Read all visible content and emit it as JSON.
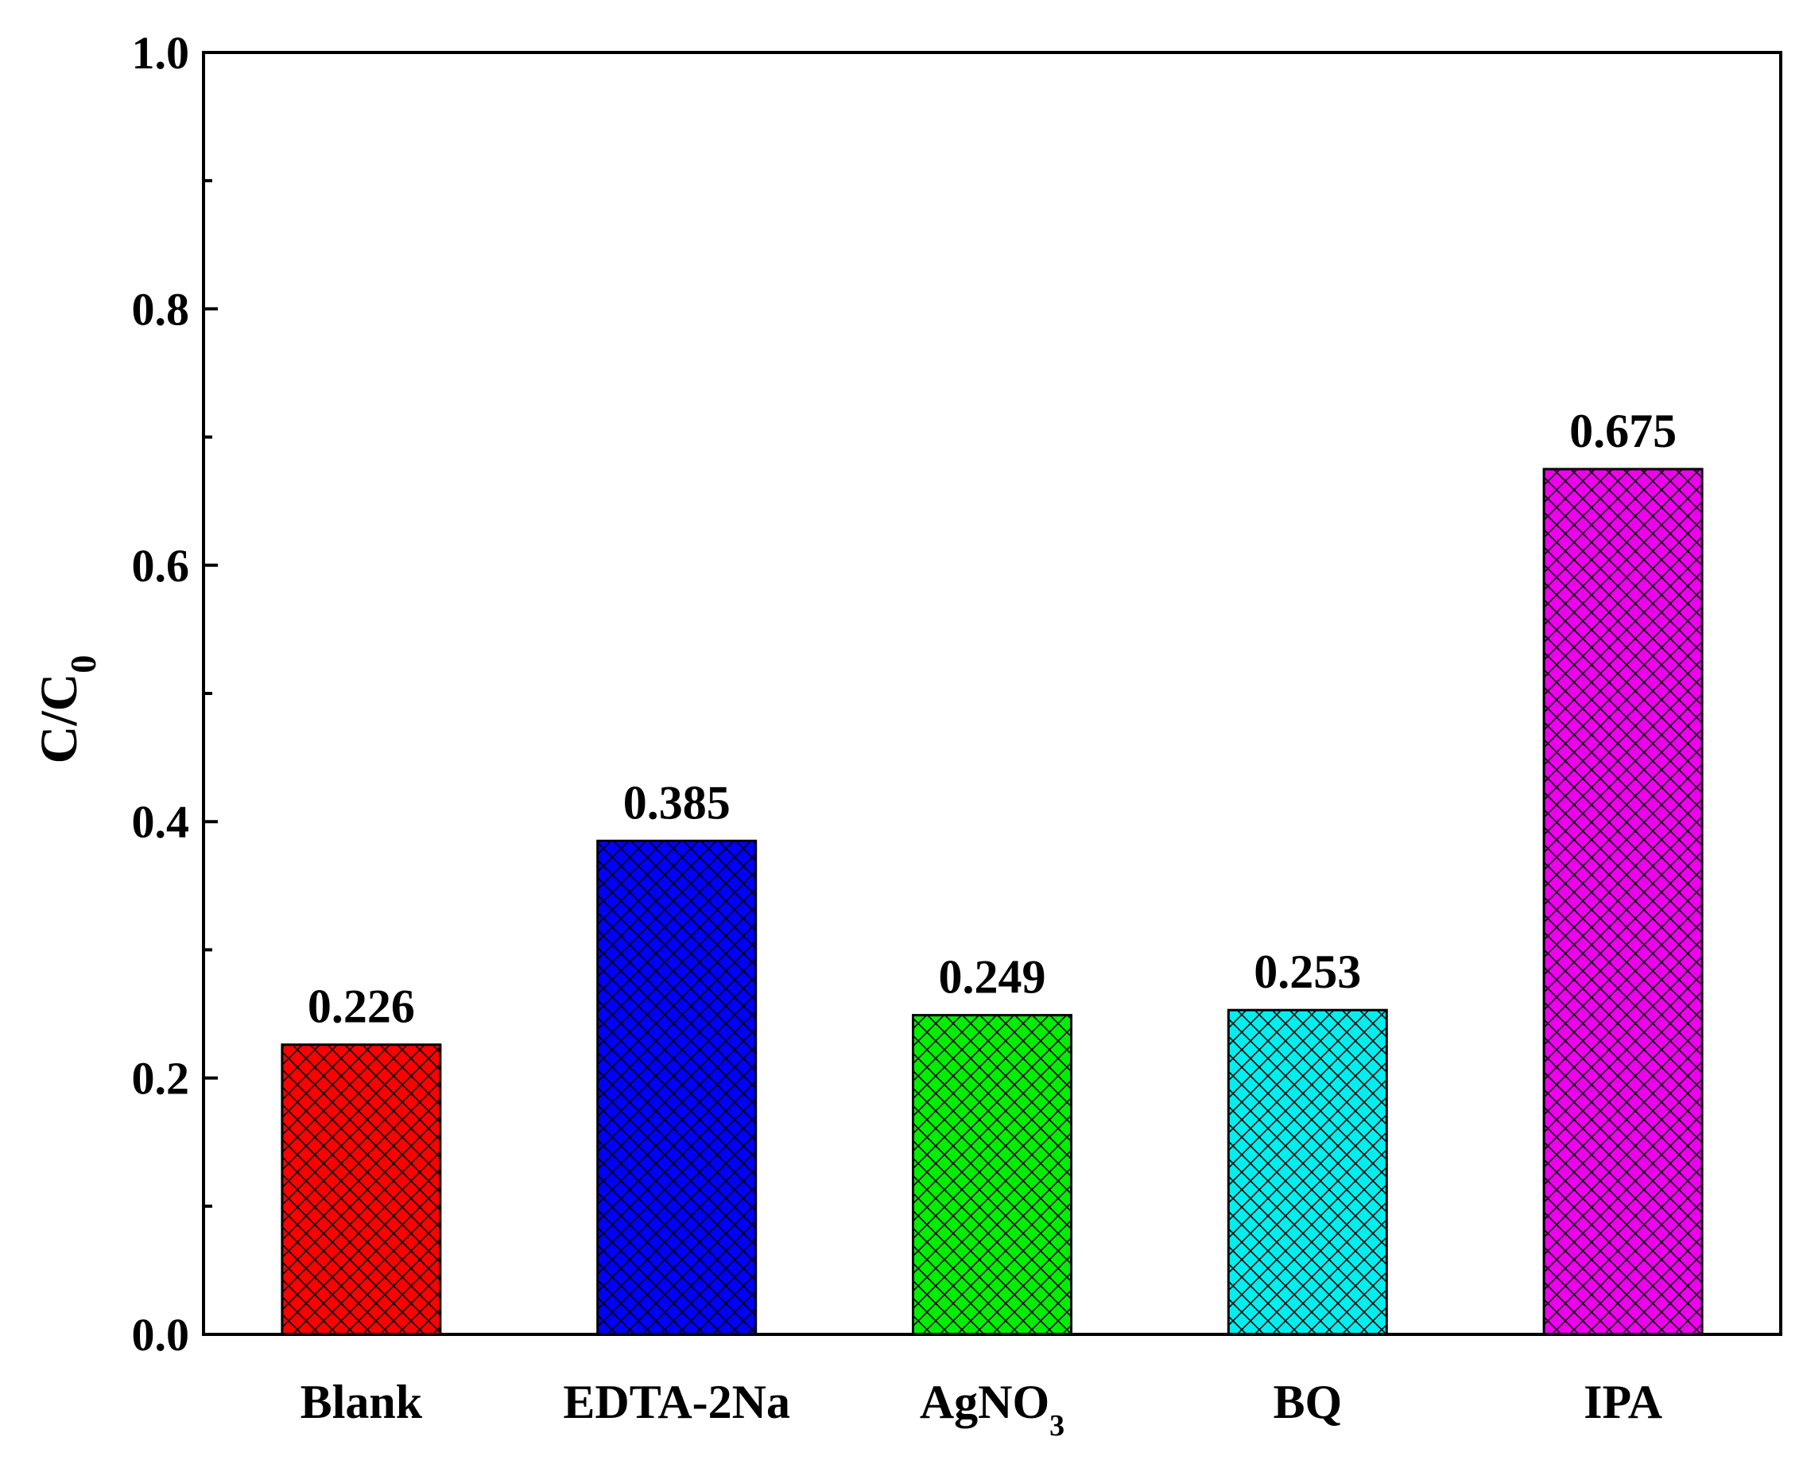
{
  "chart_data": {
    "type": "bar",
    "categories": [
      "Blank",
      "EDTA-2Na",
      "AgNO3",
      "BQ",
      "IPA"
    ],
    "category_display": [
      {
        "main": "Blank",
        "sub": ""
      },
      {
        "main": "EDTA-2Na",
        "sub": ""
      },
      {
        "main": "AgNO",
        "sub": "3"
      },
      {
        "main": "BQ",
        "sub": ""
      },
      {
        "main": "IPA",
        "sub": ""
      }
    ],
    "values": [
      0.226,
      0.385,
      0.249,
      0.253,
      0.675
    ],
    "value_labels": [
      "0.226",
      "0.385",
      "0.249",
      "0.253",
      "0.675"
    ],
    "colors": [
      "#ff0000",
      "#0000ff",
      "#00ee00",
      "#00eeee",
      "#ee00ee"
    ],
    "pattern": "crosshatch",
    "title": "",
    "xlabel": "",
    "ylabel": {
      "main": "C/C",
      "sub": "0"
    },
    "ylim": [
      0,
      1.0
    ],
    "y_major_ticks": [
      0.0,
      0.2,
      0.4,
      0.6,
      0.8,
      1.0
    ],
    "y_tick_labels": [
      "0.0",
      "0.2",
      "0.4",
      "0.6",
      "0.8",
      "1.0"
    ],
    "y_minor_ticks": [
      0.1,
      0.3,
      0.5,
      0.7,
      0.9
    ],
    "grid": false,
    "legend": "none"
  }
}
